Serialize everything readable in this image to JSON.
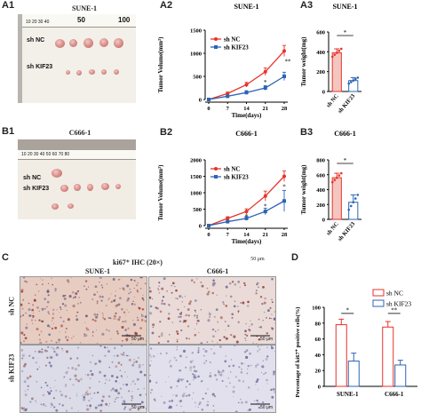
{
  "panels": {
    "A1": {
      "label": "A1",
      "title": "SUNE-1",
      "ruler_marks": [
        "50",
        "100"
      ],
      "ruler_small": "10 20 30 40",
      "row_labels": [
        "sh NC",
        "sh KIF23"
      ]
    },
    "B1": {
      "label": "B1",
      "title": "C666-1",
      "ruler_small": "10 20 30 40 50 60 70 80",
      "row_labels": [
        "sh NC",
        "sh KIF23"
      ]
    },
    "C": {
      "label": "C",
      "title": "ki67⁺ IHC (20×)",
      "cols": [
        "SUNE-1",
        "C666-1"
      ],
      "rows": [
        "sh NC",
        "sh KIF23"
      ],
      "scale": "50 μm"
    },
    "D": {
      "label": "D"
    }
  },
  "chart_data": [
    {
      "id": "A2",
      "label": "A2",
      "type": "line",
      "title": "SUNE-1",
      "xlabel": "Time(days)",
      "ylabel": "Tumor Volume(mm³)",
      "x": [
        0,
        7,
        14,
        21,
        28
      ],
      "ylim": [
        0,
        1500
      ],
      "yticks": [
        0,
        500,
        1000,
        1500
      ],
      "legend": "top-left",
      "series": [
        {
          "name": "sh NC",
          "color": "#e8312a",
          "values": [
            0,
            130,
            320,
            600,
            1050
          ],
          "err": [
            0,
            30,
            50,
            80,
            120
          ]
        },
        {
          "name": "sh KIF23",
          "color": "#2c63b5",
          "values": [
            0,
            70,
            150,
            250,
            500
          ],
          "err": [
            0,
            20,
            40,
            50,
            90
          ]
        }
      ],
      "annotations": [
        {
          "x": 21,
          "text": "*"
        },
        {
          "x": 28,
          "text": "**"
        }
      ]
    },
    {
      "id": "A3",
      "label": "A3",
      "type": "bar",
      "title": "SUNE-1",
      "ylabel": "Tumor weight(mg)",
      "categories": [
        "sh NC",
        "sh KIF23"
      ],
      "values": [
        390,
        110
      ],
      "err": [
        40,
        30
      ],
      "ylim": [
        0,
        600
      ],
      "yticks": [
        0,
        200,
        400,
        600
      ],
      "colors": [
        "#e8312a",
        "#2c63b5"
      ],
      "annotation": "*"
    },
    {
      "id": "B2",
      "label": "B2",
      "type": "line",
      "title": "C666-1",
      "xlabel": "Time(days)",
      "ylabel": "Tumor Volume(mm³)",
      "x": [
        0,
        7,
        14,
        21,
        28
      ],
      "ylim": [
        0,
        2000
      ],
      "yticks": [
        0,
        500,
        1000,
        1500,
        2000
      ],
      "legend": "top-left",
      "series": [
        {
          "name": "sh NC",
          "color": "#e8312a",
          "values": [
            0,
            220,
            430,
            900,
            1500
          ],
          "err": [
            0,
            50,
            80,
            150,
            160
          ]
        },
        {
          "name": "sh KIF23",
          "color": "#2c63b5",
          "values": [
            0,
            120,
            220,
            430,
            750
          ],
          "err": [
            0,
            40,
            60,
            100,
            320
          ]
        }
      ],
      "annotations": [
        {
          "x": 14,
          "text": "*"
        },
        {
          "x": 21,
          "text": "*"
        },
        {
          "x": 28,
          "text": "*"
        }
      ]
    },
    {
      "id": "B3",
      "label": "B3",
      "type": "bar",
      "title": "C666-1",
      "ylabel": "Tumor weight(mg)",
      "categories": [
        "sh NC",
        "sh KIF23"
      ],
      "values": [
        560,
        230
      ],
      "err": [
        60,
        100
      ],
      "ylim": [
        0,
        800
      ],
      "yticks": [
        0,
        200,
        400,
        600,
        800
      ],
      "colors": [
        "#e8312a",
        "#2c63b5"
      ],
      "annotation": "*"
    },
    {
      "id": "D",
      "label": "D",
      "type": "bar",
      "title": "",
      "ylabel": "Percentage of ki67⁺ positive cells(%)",
      "categories": [
        "SUNE-1",
        "C666-1"
      ],
      "ylim": [
        0,
        100
      ],
      "yticks": [
        0,
        20,
        40,
        60,
        80,
        100
      ],
      "legend": "top-right",
      "series": [
        {
          "name": "sh NC",
          "color": "#e8312a",
          "values": [
            78,
            75
          ],
          "err": [
            7,
            7
          ]
        },
        {
          "name": "sh KIF23",
          "color": "#2c63b5",
          "values": [
            32,
            27
          ],
          "err": [
            10,
            6
          ]
        }
      ],
      "annotations": [
        {
          "category": "SUNE-1",
          "text": "*"
        },
        {
          "category": "C666-1",
          "text": "**"
        }
      ]
    }
  ]
}
